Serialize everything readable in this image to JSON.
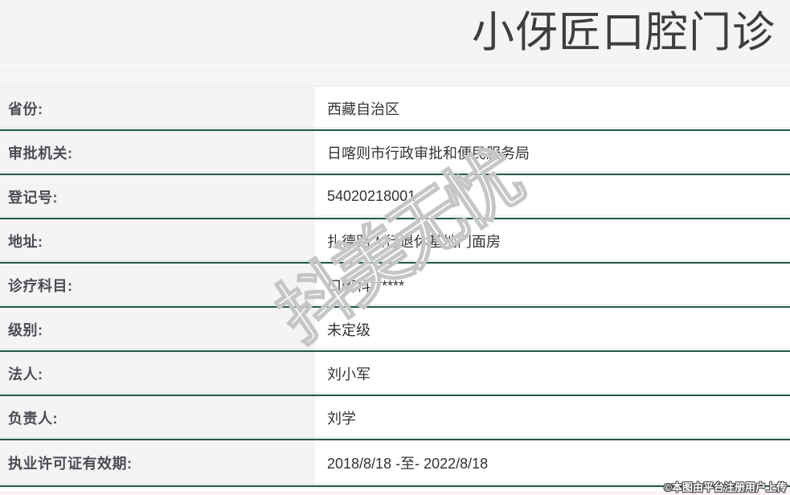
{
  "header": {
    "title": "小伢匠口腔门诊"
  },
  "table": {
    "rows": [
      {
        "label": "省份:",
        "value": "西藏自治区"
      },
      {
        "label": "审批机关:",
        "value": "日喀则市行政审批和便民服务局"
      },
      {
        "label": "登记号:",
        "value": "54020218001"
      },
      {
        "label": "地址:",
        "value": "扎德路人行退休基地门面房"
      },
      {
        "label": "诊疗科目:",
        "value": "口腔科******"
      },
      {
        "label": "级别:",
        "value": "未定级"
      },
      {
        "label": "法人:",
        "value": "刘小军"
      },
      {
        "label": "负责人:",
        "value": "刘学"
      },
      {
        "label": "执业许可证有效期:",
        "value": "2018/8/18 -至- 2022/8/18"
      }
    ]
  },
  "overlay": {
    "watermark": "抖美无忧",
    "copyright": "©本图由平台注册用户上传"
  },
  "colors": {
    "separator_teal": "#26594a",
    "page_bg": "#f5f5f5",
    "label_bg": "#f4f4f4",
    "value_bg": "#ffffff",
    "title_text": "#3e3e3e",
    "label_text": "#4c4c55",
    "value_text": "#333333",
    "watermark_stroke": "#c6c6c6",
    "bottom_strip_pink": "#fcf1f1"
  }
}
